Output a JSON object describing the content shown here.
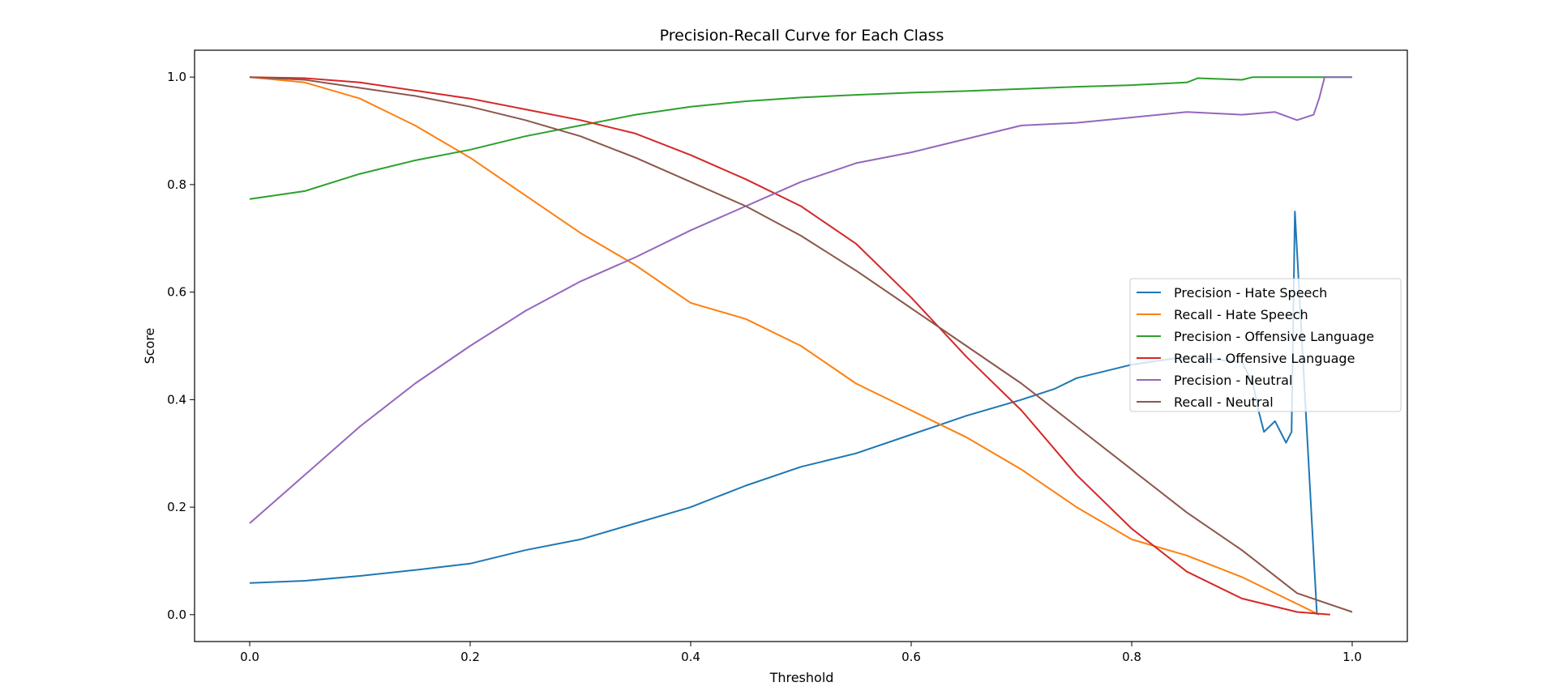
{
  "chart_data": {
    "type": "line",
    "title": "Precision-Recall Curve for Each Class",
    "xlabel": "Threshold",
    "ylabel": "Score",
    "xlim": [
      -0.05,
      1.05
    ],
    "ylim": [
      -0.05,
      1.05
    ],
    "xticks": [
      "0.0",
      "0.2",
      "0.4",
      "0.6",
      "0.8",
      "1.0"
    ],
    "yticks": [
      "0.0",
      "0.2",
      "0.4",
      "0.6",
      "0.8",
      "1.0"
    ],
    "grid": false,
    "legend_position": "center-right",
    "series": [
      {
        "name": "Precision - Hate Speech",
        "color": "#1f77b4",
        "x": [
          0.0,
          0.05,
          0.1,
          0.15,
          0.2,
          0.25,
          0.3,
          0.35,
          0.4,
          0.45,
          0.5,
          0.55,
          0.6,
          0.65,
          0.7,
          0.73,
          0.75,
          0.8,
          0.85,
          0.9,
          0.91,
          0.915,
          0.92,
          0.93,
          0.94,
          0.945,
          0.948,
          0.952,
          0.96,
          0.968
        ],
        "y": [
          0.059,
          0.063,
          0.072,
          0.083,
          0.095,
          0.12,
          0.14,
          0.17,
          0.2,
          0.24,
          0.275,
          0.3,
          0.335,
          0.37,
          0.4,
          0.42,
          0.44,
          0.465,
          0.48,
          0.47,
          0.43,
          0.38,
          0.34,
          0.36,
          0.32,
          0.34,
          0.75,
          0.6,
          0.3,
          0.0
        ]
      },
      {
        "name": "Recall - Hate Speech",
        "color": "#ff7f0e",
        "x": [
          0.0,
          0.05,
          0.1,
          0.15,
          0.2,
          0.25,
          0.3,
          0.35,
          0.4,
          0.45,
          0.5,
          0.55,
          0.6,
          0.65,
          0.7,
          0.75,
          0.8,
          0.85,
          0.9,
          0.95,
          0.97
        ],
        "y": [
          1.0,
          0.99,
          0.96,
          0.91,
          0.85,
          0.78,
          0.71,
          0.65,
          0.58,
          0.55,
          0.5,
          0.43,
          0.38,
          0.33,
          0.27,
          0.2,
          0.14,
          0.11,
          0.07,
          0.02,
          0.0
        ]
      },
      {
        "name": "Precision - Offensive Language",
        "color": "#2ca02c",
        "x": [
          0.0,
          0.05,
          0.1,
          0.15,
          0.2,
          0.25,
          0.3,
          0.35,
          0.4,
          0.45,
          0.5,
          0.55,
          0.6,
          0.65,
          0.7,
          0.75,
          0.8,
          0.85,
          0.86,
          0.9,
          0.91,
          0.95,
          1.0
        ],
        "y": [
          0.773,
          0.788,
          0.82,
          0.845,
          0.865,
          0.89,
          0.91,
          0.93,
          0.945,
          0.955,
          0.962,
          0.967,
          0.971,
          0.974,
          0.978,
          0.982,
          0.985,
          0.99,
          0.998,
          0.995,
          1.0,
          1.0,
          1.0
        ]
      },
      {
        "name": "Recall - Offensive Language",
        "color": "#d62728",
        "x": [
          0.0,
          0.05,
          0.1,
          0.15,
          0.2,
          0.25,
          0.3,
          0.35,
          0.4,
          0.45,
          0.5,
          0.55,
          0.6,
          0.65,
          0.7,
          0.75,
          0.8,
          0.85,
          0.9,
          0.95,
          0.98
        ],
        "y": [
          1.0,
          0.998,
          0.99,
          0.975,
          0.96,
          0.94,
          0.92,
          0.895,
          0.855,
          0.81,
          0.76,
          0.69,
          0.59,
          0.48,
          0.38,
          0.26,
          0.16,
          0.08,
          0.03,
          0.005,
          0.0
        ]
      },
      {
        "name": "Precision - Neutral",
        "color": "#9467bd",
        "x": [
          0.0,
          0.05,
          0.1,
          0.15,
          0.2,
          0.25,
          0.3,
          0.35,
          0.4,
          0.45,
          0.5,
          0.55,
          0.6,
          0.65,
          0.7,
          0.75,
          0.8,
          0.85,
          0.9,
          0.93,
          0.95,
          0.965,
          0.97,
          0.975,
          1.0
        ],
        "y": [
          0.17,
          0.26,
          0.35,
          0.43,
          0.5,
          0.565,
          0.62,
          0.665,
          0.715,
          0.76,
          0.805,
          0.84,
          0.86,
          0.885,
          0.91,
          0.915,
          0.925,
          0.935,
          0.93,
          0.935,
          0.92,
          0.93,
          0.96,
          1.0,
          1.0
        ]
      },
      {
        "name": "Recall - Neutral",
        "color": "#8c564b",
        "x": [
          0.0,
          0.05,
          0.1,
          0.15,
          0.2,
          0.25,
          0.3,
          0.35,
          0.4,
          0.45,
          0.5,
          0.55,
          0.6,
          0.65,
          0.7,
          0.75,
          0.8,
          0.85,
          0.9,
          0.95,
          1.0
        ],
        "y": [
          1.0,
          0.995,
          0.98,
          0.965,
          0.945,
          0.92,
          0.89,
          0.85,
          0.805,
          0.76,
          0.705,
          0.64,
          0.57,
          0.5,
          0.43,
          0.35,
          0.27,
          0.19,
          0.12,
          0.04,
          0.005
        ]
      }
    ]
  }
}
